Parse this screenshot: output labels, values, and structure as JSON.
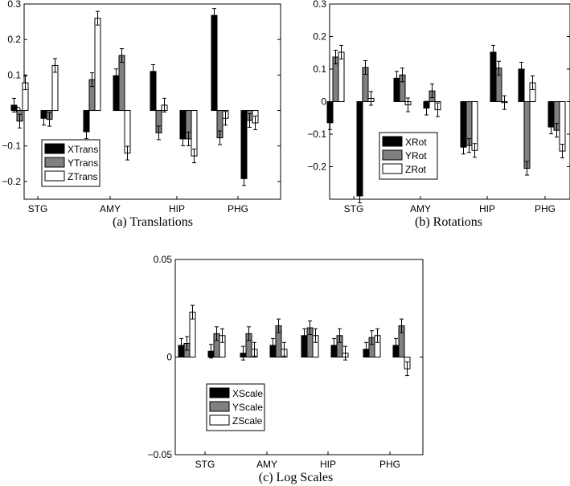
{
  "chart_data": [
    {
      "type": "bar",
      "caption": "(a) Translations",
      "categories": [
        "STG",
        "AMY",
        "HIP",
        "PHG"
      ],
      "ylim": [
        -0.25,
        0.3
      ],
      "yticks": [
        "0.3",
        "0.2",
        "0.1",
        "0",
        "−0.1",
        "−0.2"
      ],
      "ytick_values": [
        0.3,
        0.2,
        0.1,
        0,
        -0.1,
        -0.2
      ],
      "legend_position": "lower-left",
      "series": [
        {
          "name": "XTrans",
          "color": "#000000",
          "groups": [
            [
              0.015,
              -0.022
            ],
            [
              -0.06,
              0.098
            ],
            [
              0.11,
              -0.08
            ],
            [
              0.268,
              -0.192
            ]
          ]
        },
        {
          "name": "YTrans",
          "color": "#808080",
          "groups": [
            [
              -0.03,
              -0.025
            ],
            [
              0.087,
              0.155
            ],
            [
              -0.063,
              -0.08
            ],
            [
              -0.077,
              -0.028
            ]
          ]
        },
        {
          "name": "ZTrans",
          "color": "#ffffff",
          "groups": [
            [
              0.078,
              0.127
            ],
            [
              0.26,
              -0.12
            ],
            [
              0.015,
              -0.128
            ],
            [
              -0.022,
              -0.035
            ]
          ]
        }
      ]
    },
    {
      "type": "bar",
      "caption": "(b) Rotations",
      "categories": [
        "STG",
        "AMY",
        "HIP",
        "PHG"
      ],
      "ylim": [
        -0.3,
        0.3
      ],
      "yticks": [
        "0.3",
        "0.2",
        "0.1",
        "0",
        "−0.1",
        "−0.2"
      ],
      "ytick_values": [
        0.3,
        0.2,
        0.1,
        0,
        -0.1,
        -0.2
      ],
      "legend_position": "center-left",
      "series": [
        {
          "name": "XRot",
          "color": "#000000",
          "groups": [
            [
              -0.065,
              -0.29
            ],
            [
              0.072,
              -0.02
            ],
            [
              -0.14,
              0.152
            ],
            [
              0.1,
              -0.078
            ]
          ]
        },
        {
          "name": "YRot",
          "color": "#808080",
          "groups": [
            [
              0.137,
              0.105
            ],
            [
              0.082,
              0.033
            ],
            [
              -0.135,
              0.103
            ],
            [
              -0.205,
              -0.088
            ]
          ]
        },
        {
          "name": "ZRot",
          "color": "#ffffff",
          "groups": [
            [
              0.152,
              0.01
            ],
            [
              -0.01,
              -0.025
            ],
            [
              -0.15,
              -0.003
            ],
            [
              0.058,
              -0.152
            ]
          ]
        }
      ]
    },
    {
      "type": "bar",
      "caption": "(c) Log Scales",
      "categories": [
        "STG",
        "AMY",
        "HIP",
        "PHG"
      ],
      "ylim": [
        -0.05,
        0.05
      ],
      "yticks": [
        "0.05",
        "0",
        "−0.05"
      ],
      "ytick_values": [
        0.05,
        0,
        -0.05
      ],
      "legend_position": "lower-left",
      "series": [
        {
          "name": "XScale",
          "color": "#000000",
          "groups": [
            [
              0.006,
              0.003
            ],
            [
              0.002,
              0.006
            ],
            [
              0.011,
              0.006
            ],
            [
              0.004,
              0.006
            ]
          ]
        },
        {
          "name": "YScale",
          "color": "#808080",
          "groups": [
            [
              0.007,
              0.012
            ],
            [
              0.012,
              0.016
            ],
            [
              0.015,
              0.011
            ],
            [
              0.01,
              0.016
            ]
          ]
        },
        {
          "name": "ZScale",
          "color": "#ffffff",
          "groups": [
            [
              0.023,
              0.011
            ],
            [
              0.004,
              0.004
            ],
            [
              0.011,
              0.002
            ],
            [
              0.011,
              -0.006
            ]
          ]
        }
      ]
    }
  ]
}
